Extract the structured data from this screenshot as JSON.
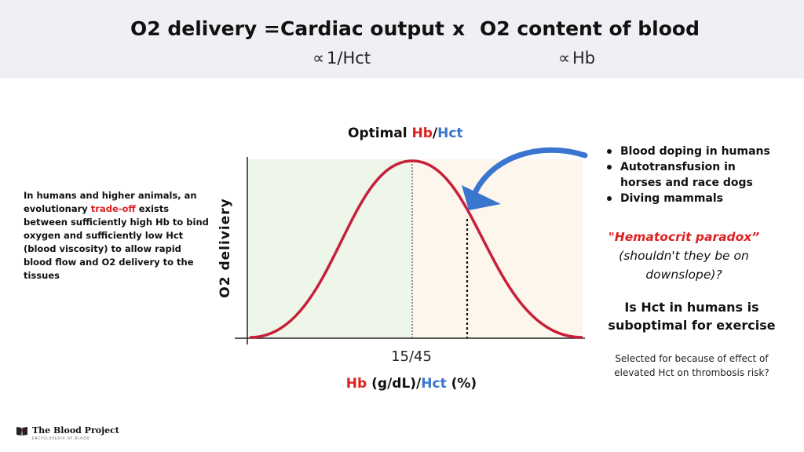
{
  "header": {
    "lhs": "O2 delivery =",
    "term1": "Cardiac output",
    "operator": "x",
    "term2": "O2 content of blood",
    "prop_symbol": "∝",
    "prop1": "1/Hct",
    "prop2": "Hb"
  },
  "left_note": {
    "before": "In humans and higher animals, an evolutionary ",
    "highlight": "trade-off",
    "after": " exists between sufficiently high Hb to bind oxygen and sufficiently low Hct (blood viscosity) to allow rapid blood flow and O2 delivery to the tissues"
  },
  "chart": {
    "title_prefix": "Optimal ",
    "title_hb": "Hb",
    "title_slash": "/",
    "title_hct": "Hct",
    "ylabel": "O2 deliviery",
    "xtick": "15/45",
    "xlabel_hb": "Hb",
    "xlabel_units1": " (g/dL)/",
    "xlabel_hct": "Hct",
    "xlabel_units2": " (%)"
  },
  "bullets": [
    "Blood doping in humans",
    "Autotransfusion in horses and race dogs",
    "Diving mammals"
  ],
  "paradox": {
    "title": "\"Hematocrit paradox”",
    "text": "(shouldn't they be on downslope)?"
  },
  "question": "Is Hct in humans is suboptimal for exercise",
  "selected_note": "Selected for because of effect of elevated Hct on thrombosis risk?",
  "logo": {
    "name": "The Blood Project",
    "tagline": "ENCYCLOPEDIA OF BLOOD"
  },
  "colors": {
    "banner": "#eef0f3",
    "curve": "#c8203a",
    "optimal_region": "#edf6e8",
    "excess_region": "#fcf6ec",
    "arrow": "#3a76d0",
    "hb_text": "#e02020",
    "hct_text": "#3a76d0"
  },
  "icons": [
    "book-icon",
    "curved-arrow-icon"
  ]
}
